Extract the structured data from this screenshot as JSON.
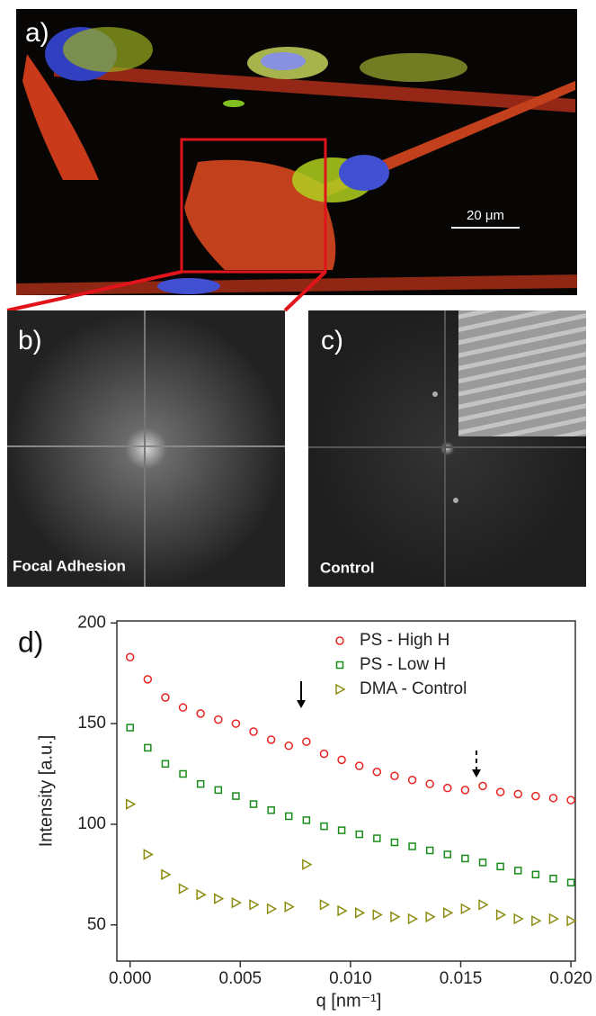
{
  "panels": {
    "a": "a)",
    "b": "b)",
    "c": "c)",
    "scale_bar": "20 μm",
    "b_caption": "Focal Adhesion",
    "c_caption": "Control"
  },
  "chart_data": {
    "type": "scatter",
    "panel_label": "d)",
    "x_label": "q [nm⁻¹]",
    "y_label": "Intensity [a.u.]",
    "x": [
      0,
      0.0008,
      0.0016,
      0.0024,
      0.0032,
      0.004,
      0.0048,
      0.0056,
      0.0064,
      0.0072,
      0.008,
      0.0088,
      0.0096,
      0.0104,
      0.0112,
      0.012,
      0.0128,
      0.0136,
      0.0144,
      0.0152,
      0.016,
      0.0168,
      0.0176,
      0.0184,
      0.0192,
      0.02
    ],
    "series": [
      {
        "name": "PS - High H",
        "color": "#e8231f",
        "marker": "circle",
        "values": [
          183,
          172,
          163,
          158,
          155,
          152,
          150,
          146,
          142,
          139,
          141,
          135,
          132,
          129,
          126,
          124,
          122,
          120,
          118,
          117,
          119,
          116,
          115,
          114,
          113,
          112
        ]
      },
      {
        "name": "PS - Low H",
        "color": "#1a8c1a",
        "marker": "square",
        "values": [
          148,
          138,
          130,
          125,
          120,
          117,
          114,
          110,
          107,
          104,
          102,
          99,
          97,
          95,
          93,
          91,
          89,
          87,
          85,
          83,
          81,
          79,
          77,
          75,
          73,
          71
        ]
      },
      {
        "name": "DMA - Control",
        "color": "#8c8c10",
        "marker": "triangle-right",
        "values": [
          110,
          85,
          75,
          68,
          65,
          63,
          61,
          60,
          58,
          59,
          80,
          60,
          57,
          56,
          55,
          54,
          53,
          54,
          56,
          58,
          60,
          55,
          53,
          52,
          53,
          52
        ]
      }
    ],
    "xlim": [
      -0.0006,
      0.0202
    ],
    "ylim": [
      32,
      201
    ],
    "xticks": [
      {
        "value": 0,
        "label": "0.000"
      },
      {
        "value": 0.005,
        "label": "0.005"
      },
      {
        "value": 0.01,
        "label": "0.010"
      },
      {
        "value": 0.015,
        "label": "0.015"
      },
      {
        "value": 0.02,
        "label": "0.020"
      }
    ],
    "yticks": [
      50,
      100,
      150,
      200
    ]
  }
}
